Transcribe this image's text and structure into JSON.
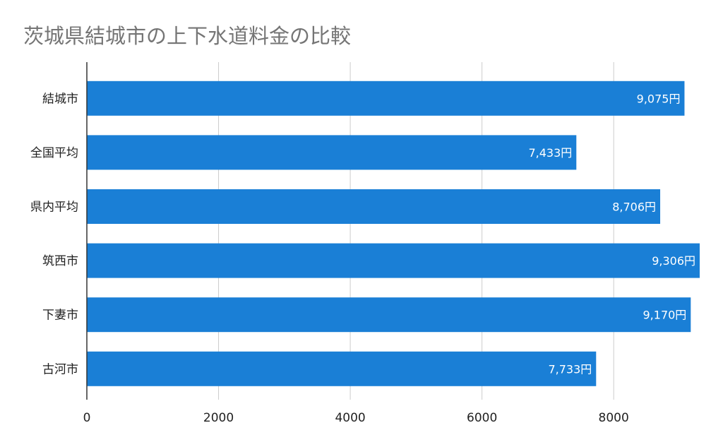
{
  "chart_data": {
    "type": "bar",
    "orientation": "horizontal",
    "title": "茨城県結城市の上下水道料金の比較",
    "xlabel": "",
    "ylabel": "",
    "categories": [
      "結城市",
      "全国平均",
      "県内平均",
      "筑西市",
      "下妻市",
      "古河市"
    ],
    "values": [
      9075,
      7433,
      8706,
      9306,
      9170,
      7733
    ],
    "data_labels": [
      "9,075円",
      "7,433円",
      "8,706円",
      "9,306円",
      "9,170円",
      "7,733円"
    ],
    "xlim": [
      0,
      9306
    ],
    "xticks": [
      0,
      2000,
      4000,
      6000,
      8000
    ],
    "xtick_labels": [
      "0",
      "2000",
      "4000",
      "6000",
      "8000"
    ],
    "grid": true,
    "legend": "none",
    "colors": {
      "bar": "#1a7fd6",
      "grid": "#cccccc",
      "axis": "#333333",
      "title": "#757575",
      "label": "#222222",
      "data_label": "#ffffff"
    }
  }
}
